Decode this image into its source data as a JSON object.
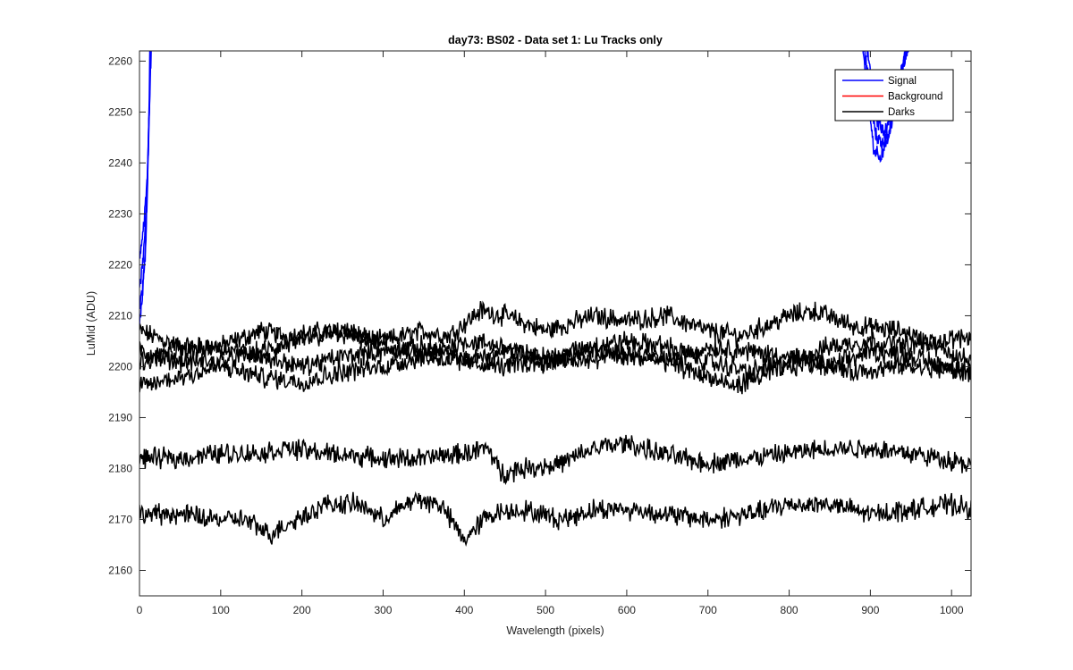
{
  "chart_data": {
    "type": "line",
    "title": "day73: BS02 - Data set 1: Lu Tracks only",
    "xlabel": "Wavelength (pixels)",
    "ylabel": "LuMid (ADU)",
    "xlim": [
      0,
      1024
    ],
    "ylim": [
      2155,
      2262
    ],
    "xticks": [
      0,
      100,
      200,
      300,
      400,
      500,
      600,
      700,
      800,
      900,
      1000
    ],
    "yticks": [
      2160,
      2170,
      2180,
      2190,
      2200,
      2210,
      2220,
      2230,
      2240,
      2250,
      2260
    ],
    "grid": false,
    "legend": {
      "position": "top-right",
      "entries": [
        {
          "label": "Signal",
          "color": "#0000ff"
        },
        {
          "label": "Background",
          "color": "#ff0000"
        },
        {
          "label": "Darks",
          "color": "#000000"
        }
      ]
    },
    "noise_amplitude": 1.6,
    "signal_series": [
      {
        "x": [
          0,
          4,
          8,
          12,
          14
        ],
        "y": [
          2211,
          2215,
          2226,
          2248,
          2265
        ]
      },
      {
        "x": [
          0,
          3,
          7,
          11,
          13
        ],
        "y": [
          2208,
          2213,
          2222,
          2242,
          2265
        ]
      },
      {
        "x": [
          0,
          4,
          8,
          12,
          14
        ],
        "y": [
          2216,
          2220,
          2230,
          2250,
          2265
        ]
      },
      {
        "x": [
          0,
          4,
          9,
          13,
          15
        ],
        "y": [
          2222,
          2226,
          2235,
          2255,
          2265
        ]
      },
      {
        "x": [
          888,
          896,
          904,
          912,
          920,
          928,
          936,
          944,
          950
        ],
        "y": [
          2265,
          2255,
          2243,
          2241,
          2244,
          2249,
          2256,
          2262,
          2265
        ]
      },
      {
        "x": [
          890,
          898,
          906,
          914,
          922,
          930,
          938,
          946,
          952
        ],
        "y": [
          2265,
          2256,
          2246,
          2243,
          2246,
          2251,
          2258,
          2263,
          2265
        ]
      },
      {
        "x": [
          893,
          901,
          909,
          917,
          925,
          933,
          941,
          948,
          955
        ],
        "y": [
          2265,
          2257,
          2248,
          2246,
          2248,
          2253,
          2260,
          2264,
          2265
        ]
      }
    ],
    "dark_series": [
      {
        "x": [
          0,
          50,
          100,
          150,
          180,
          230,
          300,
          350,
          380,
          420,
          450,
          500,
          560,
          600,
          650,
          700,
          740,
          800,
          830,
          880,
          940,
          1024
        ],
        "y": [
          2207,
          2204,
          2204,
          2207,
          2206,
          2207,
          2205,
          2207,
          2206,
          2211,
          2210,
          2207,
          2210,
          2209,
          2210,
          2207,
          2206,
          2210,
          2211,
          2208,
          2207,
          2201
        ]
      },
      {
        "x": [
          0,
          50,
          100,
          150,
          200,
          250,
          300,
          350,
          400,
          450,
          500,
          550,
          600,
          650,
          700,
          750,
          800,
          850,
          900,
          950,
          1024
        ],
        "y": [
          2203,
          2201,
          2201,
          2203,
          2205,
          2207,
          2204,
          2202,
          2205,
          2204,
          2201,
          2204,
          2205,
          2204,
          2201,
          2199,
          2201,
          2204,
          2205,
          2204,
          2206
        ]
      },
      {
        "x": [
          0,
          50,
          100,
          150,
          200,
          250,
          300,
          350,
          400,
          450,
          500,
          550,
          600,
          650,
          700,
          750,
          800,
          850,
          900,
          950,
          1024
        ],
        "y": [
          2201,
          2203,
          2204,
          2202,
          2200,
          2202,
          2203,
          2204,
          2201,
          2203,
          2202,
          2201,
          2203,
          2201,
          2204,
          2203,
          2202,
          2200,
          2203,
          2202,
          2199
        ]
      },
      {
        "x": [
          0,
          50,
          100,
          150,
          200,
          250,
          300,
          350,
          400,
          450,
          500,
          550,
          600,
          650,
          700,
          730,
          780,
          830,
          880,
          940,
          1024
        ],
        "y": [
          2196,
          2198,
          2200,
          2198,
          2197,
          2199,
          2200,
          2202,
          2201,
          2200,
          2201,
          2203,
          2202,
          2201,
          2198,
          2196,
          2199,
          2201,
          2199,
          2200,
          2199
        ]
      },
      {
        "x": [
          0,
          50,
          100,
          150,
          180,
          230,
          300,
          350,
          400,
          430,
          445,
          470,
          520,
          560,
          600,
          640,
          700,
          750,
          800,
          850,
          900,
          950,
          1024
        ],
        "y": [
          2182,
          2182,
          2183,
          2183,
          2184,
          2183,
          2182,
          2182,
          2183,
          2184,
          2179,
          2180,
          2181,
          2184,
          2185,
          2183,
          2181,
          2182,
          2183,
          2184,
          2184,
          2183,
          2181
        ]
      },
      {
        "x": [
          0,
          50,
          100,
          130,
          160,
          180,
          230,
          270,
          300,
          340,
          370,
          400,
          430,
          470,
          520,
          560,
          600,
          650,
          700,
          750,
          800,
          850,
          900,
          950,
          1000,
          1024
        ],
        "y": [
          2171,
          2171,
          2170,
          2170,
          2167,
          2169,
          2173,
          2173,
          2170,
          2174,
          2173,
          2166,
          2171,
          2172,
          2170,
          2172,
          2172,
          2171,
          2170,
          2171,
          2173,
          2173,
          2171,
          2172,
          2173,
          2172
        ]
      }
    ]
  }
}
